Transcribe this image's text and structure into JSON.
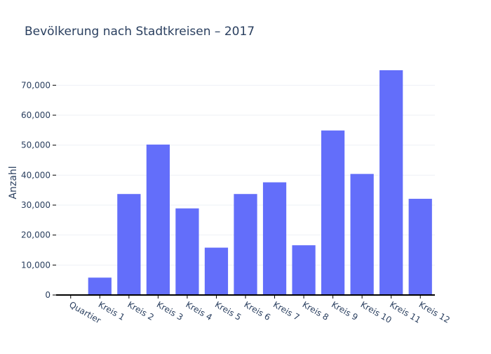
{
  "chart_data": {
    "type": "bar",
    "title": "Bevölkerung nach Stadtkreisen – 2017",
    "xlabel": "",
    "ylabel": "Anzahl",
    "categories": [
      "Quartier",
      "Kreis 1",
      "Kreis 2",
      "Kreis 3",
      "Kreis 4",
      "Kreis 5",
      "Kreis 6",
      "Kreis 7",
      "Kreis 8",
      "Kreis 9",
      "Kreis 10",
      "Kreis 11",
      "Kreis 12"
    ],
    "values": [
      0,
      5800,
      33700,
      50200,
      28900,
      15800,
      33700,
      37600,
      16600,
      54900,
      40400,
      75000,
      32100
    ],
    "ylim": [
      0,
      75000
    ],
    "yticks": [
      0,
      10000,
      20000,
      30000,
      40000,
      50000,
      60000,
      70000
    ],
    "ytick_labels": [
      "0",
      "10,000",
      "20,000",
      "30,000",
      "40,000",
      "50,000",
      "60,000",
      "70,000"
    ],
    "grid": true,
    "bar_color": "#636efa",
    "legend": "none"
  }
}
